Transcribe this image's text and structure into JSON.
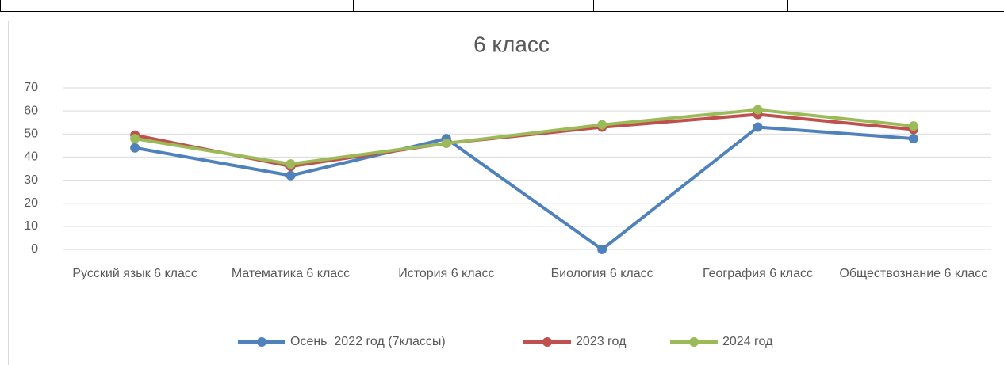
{
  "chart_data": {
    "type": "line",
    "title": "6 класс",
    "categories": [
      "Русский язык 6 класс",
      "Математика 6 класс",
      "История 6 класс",
      "Биология 6 класс",
      "География 6 класс",
      "Обществознание 6 класс"
    ],
    "series": [
      {
        "name": "Осень  2022 год (7классы)",
        "color": "#4f81bd",
        "values": [
          44,
          32,
          48,
          0,
          53,
          48
        ]
      },
      {
        "name": "2023 год",
        "color": "#c0504d",
        "values": [
          49.5,
          36,
          46,
          53,
          58.5,
          52
        ]
      },
      {
        "name": "2024 год",
        "color": "#9bbb59",
        "values": [
          48,
          37,
          46,
          54,
          60.5,
          53.5
        ]
      }
    ],
    "ylim": [
      0,
      70
    ],
    "yticks": [
      0,
      10,
      20,
      30,
      40,
      50,
      60,
      70
    ],
    "grid": true,
    "legend": "bottom"
  }
}
